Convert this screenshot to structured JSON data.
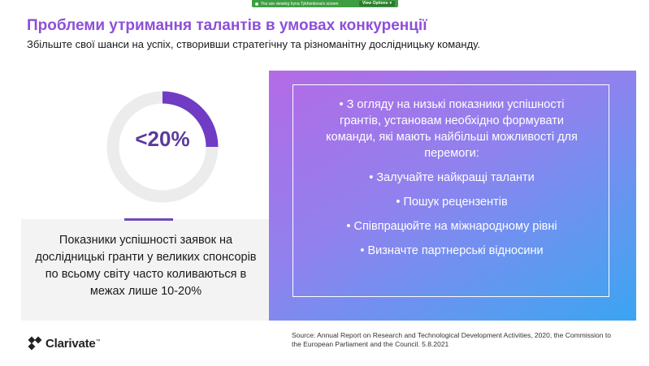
{
  "share_bar": {
    "viewing_text": "You are viewing  Iryna Tykhonkova's screen",
    "view_options_label": "View Options",
    "bar_color": "#3f9e42"
  },
  "slide": {
    "title": "Проблеми утримання талантів в умовах конкуренції",
    "subtitle": "Збільште свої шанси на успіх, створивши стратегічну та різноманітну дослідницьку команду.",
    "colors": {
      "title": "#8e4fd8",
      "donut_arc": "#6f3cc3",
      "donut_track": "#ececec",
      "gradient_start": "#b46ae6",
      "gradient_end": "#3aa4f2"
    },
    "stat": {
      "label": "<20%",
      "percent": 20,
      "description": "Показники успішності заявок на дослідницькі гранти у великих спонсорів по всьому світу часто коливаються в межах лише 10-20%"
    },
    "bullets": {
      "intro": "З огляду на низькі показники успішності грантів, установам необхідно формувати команди, які мають найбільші можливості для перемоги:",
      "items": [
        "Залучайте найкращі таланти",
        "Пошук рецензентів",
        "Співпрацюйте на міжнародному рівні",
        "Визначте партнерські відносини"
      ]
    },
    "logo_text": "Clarivate",
    "logo_trademark": "™",
    "source": "Source: Annual Report on Research and Technological Development Activities, 2020, the Commission to the European Parliament and the Council. 5.8.2021"
  }
}
